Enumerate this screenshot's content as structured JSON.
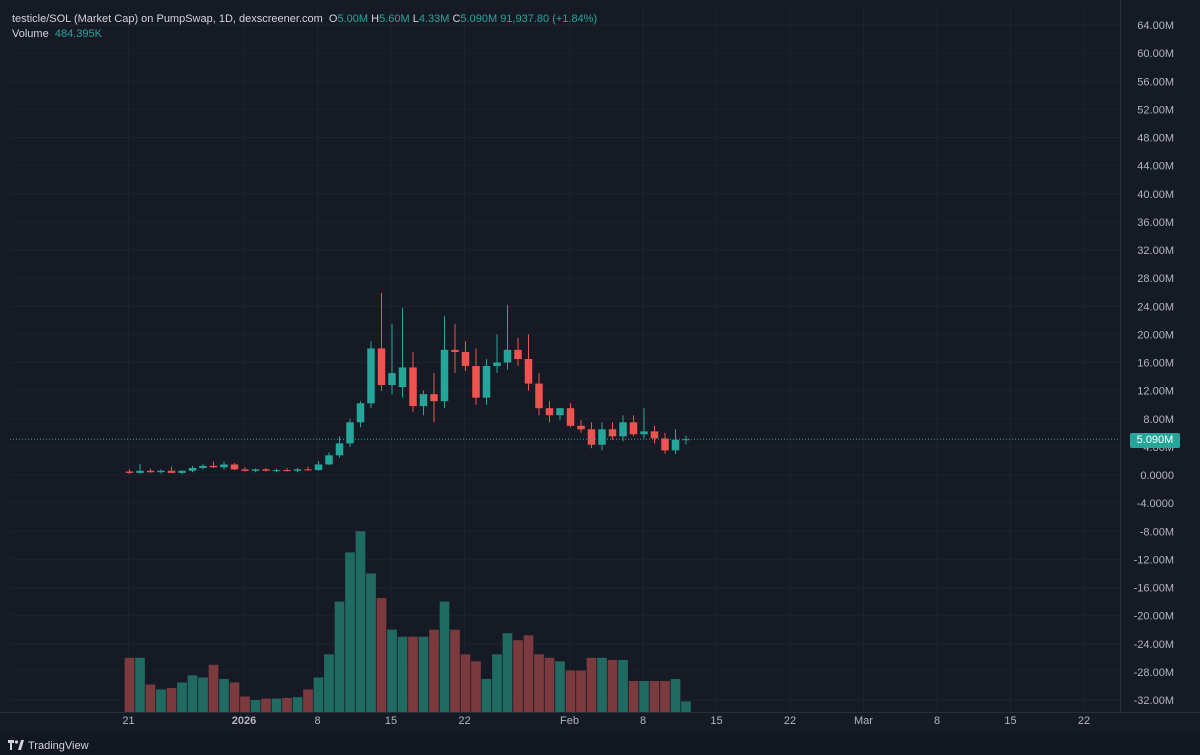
{
  "legend": {
    "title": "testicle/SOL (Market Cap) on PumpSwap, 1D, dexscreener.com",
    "o_label": "O",
    "o_value": "5.00M",
    "h_label": "H",
    "h_value": "5.60M",
    "l_label": "L",
    "l_value": "4.33M",
    "c_label": "C",
    "c_value": "5.090M",
    "change": "91,937.80 (+1.84%)",
    "volume_label": "Volume",
    "volume_value": "484.395K"
  },
  "last_price_label": "5.090M",
  "branding": "TradingView",
  "colors": {
    "background": "#161a25",
    "up": "#26a69a",
    "down": "#ef5350",
    "up_volume": "#1f6b62",
    "down_volume": "#7a3a3e",
    "grid": "#1e222d",
    "axis_text": "#b2b5be"
  },
  "chart_data": {
    "type": "candlestick",
    "unit": "M",
    "price_axis": {
      "ticks": [
        "64.00M",
        "60.00M",
        "56.00M",
        "52.00M",
        "48.00M",
        "44.00M",
        "40.00M",
        "36.00M",
        "32.00M",
        "28.00M",
        "24.00M",
        "20.00M",
        "16.00M",
        "12.00M",
        "8.00M",
        "4.00M",
        "0.0000",
        "-4.0000",
        "-8.00M",
        "-12.00M",
        "-16.00M",
        "-20.00M",
        "-24.00M",
        "-28.00M",
        "-32.00M"
      ]
    },
    "time_axis": {
      "ticks": [
        "21",
        "2026",
        "8",
        "15",
        "22",
        "Feb",
        "8",
        "15",
        "22",
        "Mar",
        "8",
        "15",
        "22"
      ]
    },
    "series": [
      {
        "name": "price",
        "ohlc": [
          [
            0.5,
            0.8,
            0.2,
            0.3
          ],
          [
            0.3,
            1.6,
            0.2,
            0.6
          ],
          [
            0.6,
            0.9,
            0.3,
            0.4
          ],
          [
            0.4,
            0.8,
            0.2,
            0.6
          ],
          [
            0.6,
            1.2,
            0.3,
            0.3
          ],
          [
            0.3,
            0.7,
            0.1,
            0.6
          ],
          [
            0.6,
            1.3,
            0.4,
            1.0
          ],
          [
            1.0,
            1.6,
            0.8,
            1.3
          ],
          [
            1.3,
            1.9,
            1.0,
            1.1
          ],
          [
            1.1,
            1.9,
            0.8,
            1.5
          ],
          [
            1.5,
            1.7,
            0.7,
            0.8
          ],
          [
            0.8,
            1.1,
            0.5,
            0.6
          ],
          [
            0.6,
            0.9,
            0.4,
            0.8
          ],
          [
            0.8,
            1.0,
            0.5,
            0.6
          ],
          [
            0.6,
            0.9,
            0.4,
            0.7
          ],
          [
            0.7,
            1.0,
            0.5,
            0.6
          ],
          [
            0.6,
            1.0,
            0.4,
            0.8
          ],
          [
            0.8,
            1.2,
            0.6,
            0.7
          ],
          [
            0.7,
            2.0,
            0.6,
            1.5
          ],
          [
            1.5,
            3.2,
            1.4,
            2.8
          ],
          [
            2.8,
            5.5,
            2.5,
            4.5
          ],
          [
            4.5,
            8.0,
            4.0,
            7.5
          ],
          [
            7.5,
            10.5,
            6.8,
            10.2
          ],
          [
            10.2,
            19.0,
            9.5,
            18.0
          ],
          [
            18.0,
            25.9,
            12.0,
            12.8
          ],
          [
            12.8,
            21.5,
            11.5,
            14.5
          ],
          [
            12.5,
            23.8,
            11.0,
            15.3
          ],
          [
            15.3,
            17.5,
            9.0,
            9.8
          ],
          [
            9.8,
            12.0,
            8.5,
            11.5
          ],
          [
            11.5,
            14.5,
            7.5,
            10.5
          ],
          [
            10.5,
            22.6,
            9.5,
            17.8
          ],
          [
            17.8,
            21.5,
            14.5,
            17.5
          ],
          [
            17.5,
            19.0,
            14.8,
            15.5
          ],
          [
            15.5,
            18.0,
            10.0,
            11.0
          ],
          [
            11.0,
            16.5,
            10.0,
            15.5
          ],
          [
            15.5,
            20.0,
            14.5,
            16.0
          ],
          [
            16.0,
            24.2,
            15.0,
            17.8
          ],
          [
            17.8,
            19.5,
            15.5,
            16.5
          ],
          [
            16.5,
            20.0,
            12.0,
            13.0
          ],
          [
            13.0,
            14.5,
            8.5,
            9.5
          ],
          [
            9.5,
            10.5,
            7.5,
            8.5
          ],
          [
            8.5,
            9.5,
            7.8,
            9.5
          ],
          [
            9.5,
            10.2,
            6.8,
            7.0
          ],
          [
            7.0,
            7.8,
            6.0,
            6.5
          ],
          [
            6.5,
            7.5,
            3.8,
            4.3
          ],
          [
            4.3,
            7.5,
            3.5,
            6.5
          ],
          [
            6.5,
            7.5,
            5.0,
            5.5
          ],
          [
            5.5,
            8.5,
            4.8,
            7.5
          ],
          [
            7.5,
            8.5,
            5.5,
            5.8
          ],
          [
            5.8,
            9.5,
            5.2,
            6.2
          ],
          [
            6.2,
            7.0,
            4.5,
            5.2
          ],
          [
            5.2,
            6.0,
            3.0,
            3.5
          ],
          [
            3.5,
            6.5,
            3.0,
            5.0
          ],
          [
            5.0,
            5.6,
            4.33,
            5.09
          ]
        ]
      },
      {
        "name": "volume",
        "values": [
          -26.0,
          -26.0,
          -29.8,
          -30.5,
          -30.3,
          -29.5,
          -28.5,
          -28.8,
          -27.0,
          -29.0,
          -29.5,
          -31.5,
          -32.0,
          -31.8,
          -31.8,
          -31.7,
          -31.6,
          -30.5,
          -28.8,
          -25.5,
          -18.0,
          -11.0,
          -8.0,
          -14.0,
          -17.5,
          -22.0,
          -23.0,
          -23.0,
          -23.0,
          -22.0,
          -18.0,
          -22.0,
          -25.5,
          -26.5,
          -29.0,
          -25.5,
          -22.5,
          -23.5,
          -22.8,
          -25.5,
          -26.0,
          -26.5,
          -27.8,
          -27.8,
          -26.0,
          -26.0,
          -26.3,
          -26.3,
          -29.3,
          -29.3,
          -29.3,
          -29.3,
          -29.0,
          -32.2
        ]
      }
    ],
    "last_price": 5.09
  }
}
